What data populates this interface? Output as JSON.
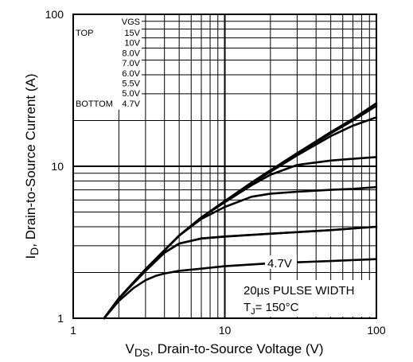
{
  "chart_data": {
    "type": "line",
    "scale": "log-log",
    "xlabel": "V",
    "xlabel_sub": "DS",
    "xlabel_rest": ", Drain-to-Source Voltage (V)",
    "ylabel": "I",
    "ylabel_sub": "D",
    "ylabel_rest": ",  Drain-to-Source Current (A)",
    "xlim": [
      1,
      100
    ],
    "ylim": [
      1,
      100
    ],
    "x_ticks": [
      "1",
      "10",
      "100"
    ],
    "y_ticks": [
      "1",
      "10",
      "100"
    ],
    "grid": true,
    "legend": {
      "placement": "top-left",
      "header": "VGS",
      "top_label": "TOP",
      "bottom_label": "BOTTOM",
      "entries": [
        "15V",
        "10V",
        "8.0V",
        "7.0V",
        "6.0V",
        "5.5V",
        "5.0V",
        "4.7V"
      ]
    },
    "curve_label": "4.7V",
    "annotations": [
      "20µs PULSE WIDTH",
      "150°C"
    ],
    "annotation_tj_prefix": "T",
    "annotation_tj_sub": "J",
    "annotation_tj_eq": "= ",
    "series": [
      {
        "name": "15V",
        "x": [
          1.6,
          2,
          3,
          5,
          7,
          10,
          15,
          20,
          30,
          50,
          70,
          100
        ],
        "y": [
          1.0,
          1.35,
          2.1,
          3.5,
          4.6,
          5.9,
          7.8,
          9.4,
          12.2,
          16.8,
          20.5,
          26.0
        ]
      },
      {
        "name": "10V",
        "x": [
          1.6,
          2,
          3,
          5,
          7,
          10,
          15,
          20,
          30,
          50,
          70,
          100
        ],
        "y": [
          1.0,
          1.35,
          2.1,
          3.5,
          4.6,
          5.9,
          7.8,
          9.4,
          12.1,
          16.5,
          20.0,
          25.0
        ]
      },
      {
        "name": "8.0V",
        "x": [
          1.6,
          2,
          3,
          5,
          7,
          10,
          15,
          20,
          30,
          50,
          70,
          100
        ],
        "y": [
          1.0,
          1.35,
          2.1,
          3.5,
          4.6,
          5.9,
          7.7,
          9.2,
          11.8,
          15.8,
          18.5,
          21.0
        ]
      },
      {
        "name": "7.0V",
        "x": [
          1.6,
          2,
          3,
          5,
          7,
          10,
          15,
          20,
          30,
          50,
          70,
          100
        ],
        "y": [
          1.0,
          1.35,
          2.1,
          3.5,
          4.6,
          5.8,
          7.5,
          8.8,
          10.2,
          10.9,
          11.2,
          11.5
        ]
      },
      {
        "name": "6.0V",
        "x": [
          1.6,
          2,
          3,
          5,
          7,
          10,
          15,
          20,
          30,
          50,
          70,
          100
        ],
        "y": [
          1.0,
          1.35,
          2.1,
          3.5,
          4.5,
          5.4,
          6.3,
          6.6,
          6.8,
          7.0,
          7.1,
          7.3
        ]
      },
      {
        "name": "5.5V",
        "x": [
          1.6,
          2,
          3,
          4,
          5,
          7,
          10,
          20,
          50,
          100
        ],
        "y": [
          1.0,
          1.35,
          2.05,
          2.7,
          3.1,
          3.35,
          3.45,
          3.6,
          3.8,
          4.0
        ]
      },
      {
        "name": "5.0V",
        "x": [
          1.6,
          2,
          3,
          4,
          5,
          7,
          10,
          20,
          50,
          100
        ],
        "y": [
          1.0,
          1.35,
          2.05,
          2.7,
          3.1,
          3.35,
          3.45,
          3.6,
          3.8,
          4.0
        ]
      },
      {
        "name": "4.7V",
        "x": [
          1.6,
          2,
          2.5,
          3,
          3.5,
          4,
          5,
          7,
          10,
          20,
          50,
          100
        ],
        "y": [
          1.0,
          1.3,
          1.58,
          1.78,
          1.9,
          1.97,
          2.05,
          2.12,
          2.2,
          2.3,
          2.38,
          2.45
        ]
      }
    ]
  }
}
